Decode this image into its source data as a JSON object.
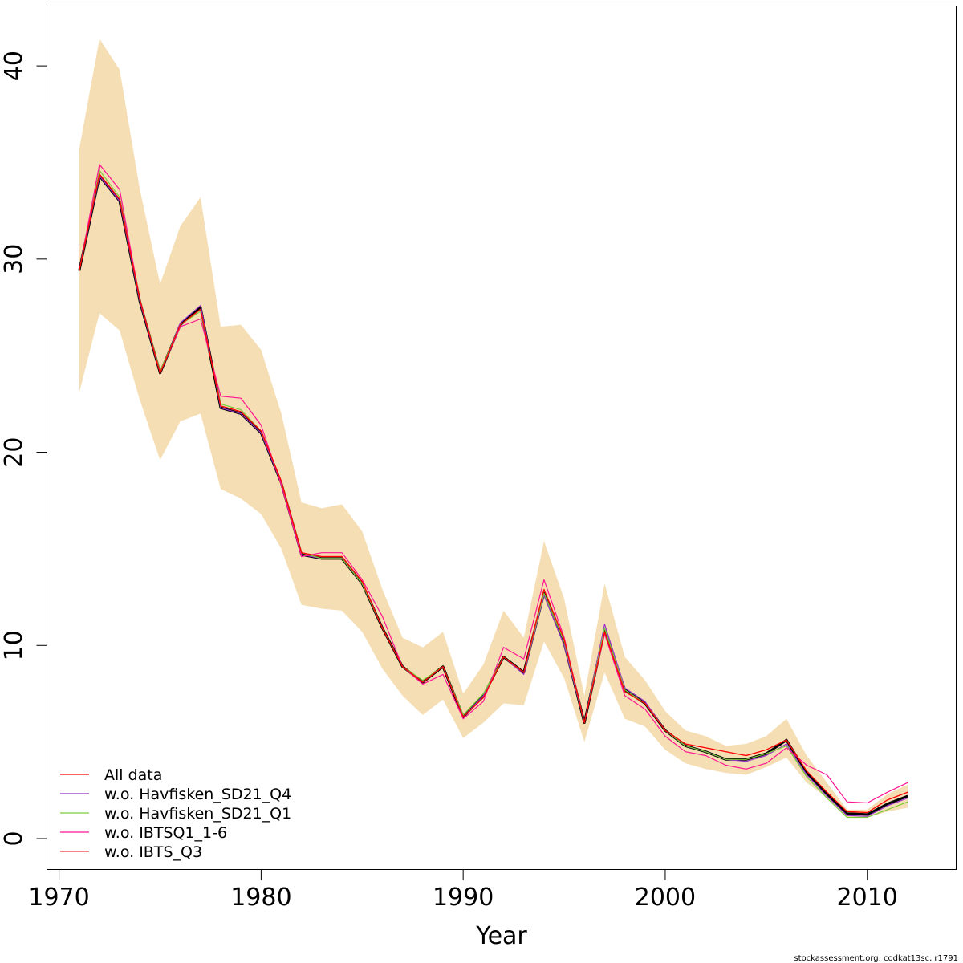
{
  "chart_data": {
    "type": "line",
    "title": "",
    "xlabel": "Year",
    "ylabel": "",
    "xlim": [
      1969.4,
      2014.4
    ],
    "ylim": [
      -1.6,
      43.1
    ],
    "xticks": [
      1970,
      1980,
      1990,
      2000,
      2010
    ],
    "xtick_labels": [
      "1970",
      "1980",
      "1990",
      "2000",
      "2010"
    ],
    "yticks": [
      0,
      10,
      20,
      30,
      40
    ],
    "ytick_labels": [
      "0",
      "10",
      "20",
      "30",
      "40"
    ],
    "grid": false,
    "legend_position": "bottom-left",
    "x": [
      1971,
      1972,
      1973,
      1974,
      1975,
      1976,
      1977,
      1978,
      1979,
      1980,
      1981,
      1982,
      1983,
      1984,
      1985,
      1986,
      1987,
      1988,
      1989,
      1990,
      1991,
      1992,
      1993,
      1994,
      1995,
      1996,
      1997,
      1998,
      1999,
      2000,
      2001,
      2002,
      2003,
      2004,
      2005,
      2006,
      2007,
      2008,
      2009,
      2010,
      2011,
      2012
    ],
    "band": {
      "name": "confidence interval",
      "color": "#F5DEB3",
      "lower": [
        23.1,
        27.2,
        26.3,
        22.7,
        19.6,
        21.6,
        22.0,
        18.1,
        17.6,
        16.8,
        15.0,
        12.1,
        11.9,
        11.8,
        10.7,
        8.8,
        7.4,
        6.4,
        7.2,
        5.2,
        6.0,
        7.0,
        6.9,
        10.2,
        8.3,
        5.0,
        8.6,
        6.2,
        5.8,
        4.6,
        3.9,
        3.6,
        3.4,
        3.3,
        3.7,
        4.2,
        2.9,
        2.1,
        1.1,
        1.1,
        1.4,
        1.6
      ],
      "upper": [
        35.7,
        41.4,
        39.8,
        33.6,
        28.7,
        31.7,
        33.2,
        26.5,
        26.6,
        25.3,
        22.0,
        17.4,
        17.1,
        17.3,
        15.9,
        12.9,
        10.4,
        9.9,
        10.7,
        7.5,
        9.0,
        11.8,
        10.4,
        15.4,
        12.4,
        7.4,
        13.2,
        9.4,
        8.2,
        6.6,
        5.6,
        5.3,
        4.8,
        4.9,
        5.3,
        6.2,
        4.3,
        2.9,
        1.5,
        1.5,
        2.3,
        2.8
      ]
    },
    "main_series": {
      "name": "estimate",
      "color": "#000000",
      "values": [
        29.4,
        34.3,
        33.0,
        27.8,
        24.1,
        26.6,
        27.5,
        22.3,
        22.0,
        21.0,
        18.4,
        14.7,
        14.5,
        14.5,
        13.2,
        10.9,
        8.9,
        8.1,
        8.9,
        6.3,
        7.4,
        9.4,
        8.6,
        12.7,
        10.1,
        6.0,
        10.8,
        7.7,
        7.0,
        5.6,
        4.8,
        4.5,
        4.1,
        4.1,
        4.4,
        5.1,
        3.4,
        2.3,
        1.3,
        1.25,
        1.8,
        2.2
      ]
    },
    "series": [
      {
        "name": "All data",
        "color": "#FF0000",
        "values": [
          29.4,
          34.4,
          33.1,
          27.9,
          24.1,
          26.6,
          27.4,
          22.4,
          22.1,
          21.1,
          18.5,
          14.8,
          14.6,
          14.6,
          13.3,
          10.9,
          8.9,
          8.1,
          8.9,
          6.3,
          7.3,
          9.4,
          8.6,
          12.9,
          10.3,
          6.0,
          10.7,
          7.6,
          7.0,
          5.6,
          4.9,
          4.7,
          4.5,
          4.3,
          4.6,
          5.1,
          3.5,
          2.4,
          1.4,
          1.35,
          2.0,
          2.4
        ]
      },
      {
        "name": "w.o. Havfisken_SD21_Q4",
        "color": "#9932CC",
        "values": [
          29.4,
          34.3,
          33.0,
          27.8,
          24.1,
          26.7,
          27.6,
          22.3,
          22.0,
          21.0,
          18.4,
          14.7,
          14.5,
          14.5,
          13.2,
          10.9,
          8.9,
          8.1,
          8.9,
          6.3,
          7.4,
          9.4,
          8.5,
          12.6,
          10.0,
          6.0,
          11.1,
          7.8,
          7.1,
          5.6,
          4.8,
          4.5,
          4.1,
          4.0,
          4.3,
          4.9,
          3.3,
          2.2,
          1.2,
          1.15,
          1.7,
          2.1
        ]
      },
      {
        "name": "w.o. Havfisken_SD21_Q1",
        "color": "#7CCD3A",
        "values": [
          29.4,
          34.6,
          33.2,
          27.9,
          24.2,
          26.6,
          27.3,
          22.5,
          22.2,
          21.1,
          18.5,
          14.8,
          14.5,
          14.5,
          13.2,
          10.9,
          8.9,
          8.2,
          8.9,
          6.4,
          7.5,
          9.4,
          8.6,
          12.7,
          10.2,
          6.0,
          10.9,
          7.7,
          7.0,
          5.6,
          4.8,
          4.5,
          4.1,
          4.1,
          4.4,
          4.8,
          3.2,
          2.1,
          1.1,
          1.1,
          1.5,
          1.9
        ]
      },
      {
        "name": "w.o. IBTSQ1_1-6",
        "color": "#FF1493",
        "values": [
          29.4,
          34.9,
          33.6,
          27.9,
          24.1,
          26.5,
          26.9,
          22.9,
          22.8,
          21.4,
          18.3,
          14.6,
          14.8,
          14.8,
          13.4,
          11.5,
          8.9,
          8.0,
          8.5,
          6.2,
          7.1,
          9.9,
          9.3,
          13.4,
          10.4,
          6.0,
          10.6,
          7.4,
          6.7,
          5.3,
          4.5,
          4.3,
          3.8,
          3.6,
          3.9,
          4.7,
          3.8,
          3.3,
          1.9,
          1.85,
          2.4,
          2.9
        ]
      },
      {
        "name": "w.o. IBTS_Q3",
        "color": "#EE3B3B",
        "values": [
          29.4,
          34.4,
          33.1,
          27.9,
          24.1,
          26.6,
          27.4,
          22.4,
          22.1,
          21.1,
          18.5,
          14.8,
          14.6,
          14.6,
          13.3,
          10.9,
          8.9,
          8.1,
          8.9,
          6.3,
          7.3,
          9.4,
          8.6,
          12.9,
          10.3,
          6.0,
          10.7,
          7.6,
          7.0,
          5.6,
          4.9,
          4.7,
          4.5,
          4.3,
          4.6,
          5.1,
          3.5,
          2.4,
          1.4,
          1.35,
          2.0,
          2.4
        ]
      }
    ],
    "footer": "stockassessment.org, codkat13sc, r1791"
  }
}
